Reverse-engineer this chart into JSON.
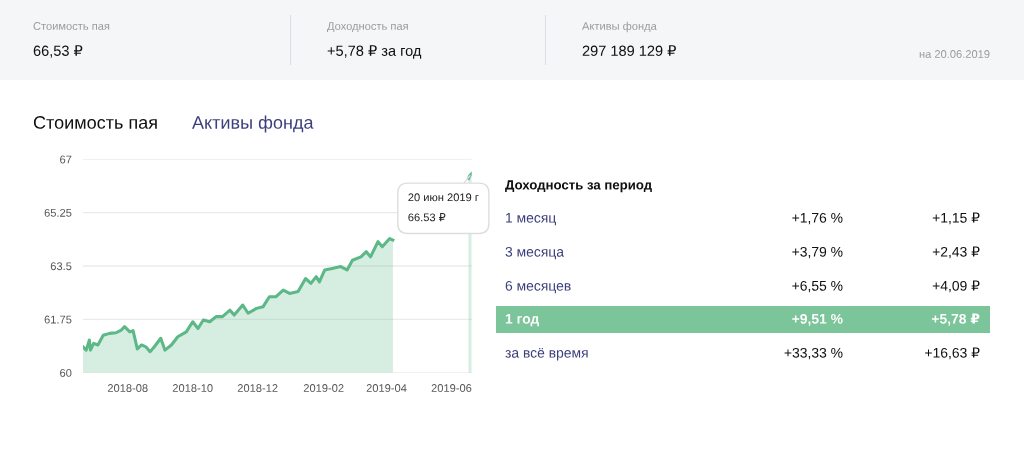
{
  "chart_data": {
    "type": "area",
    "title": "Стоимость пая",
    "x": [
      "2018-06-20",
      "2018-06-23",
      "2018-06-26",
      "2018-06-27",
      "2018-06-30",
      "2018-07-04",
      "2018-07-09",
      "2018-07-15",
      "2018-07-21",
      "2018-07-26",
      "2018-07-29",
      "2018-08-03",
      "2018-08-06",
      "2018-08-10",
      "2018-08-14",
      "2018-08-18",
      "2018-08-22",
      "2018-08-26",
      "2018-09-01",
      "2018-09-05",
      "2018-09-11",
      "2018-09-17",
      "2018-09-25",
      "2018-10-01",
      "2018-10-06",
      "2018-10-11",
      "2018-10-17",
      "2018-10-23",
      "2018-10-29",
      "2018-11-05",
      "2018-11-09",
      "2018-11-17",
      "2018-11-22",
      "2018-11-30",
      "2018-12-06",
      "2018-12-12",
      "2018-12-18",
      "2018-12-25",
      "2018-12-31",
      "2019-01-08",
      "2019-01-15",
      "2019-01-20",
      "2019-01-25",
      "2019-01-28",
      "2019-02-02",
      "2019-02-09",
      "2019-02-17",
      "2019-02-23",
      "2019-02-28",
      "2019-03-08",
      "2019-03-13",
      "2019-03-17",
      "2019-03-24",
      "2019-03-28",
      "2019-04-04",
      "2019-04-07",
      "2019-04-16",
      "2019-06-11",
      "2019-06-17",
      "2019-06-18",
      "2019-06-20"
    ],
    "series": [
      {
        "color": "#5cb887",
        "values": [
          60.85,
          60.74,
          61.07,
          60.74,
          60.96,
          60.91,
          61.23,
          61.29,
          61.31,
          61.4,
          61.51,
          61.34,
          61.38,
          60.78,
          60.91,
          60.85,
          60.69,
          60.85,
          61.13,
          60.74,
          60.91,
          61.18,
          61.34,
          61.67,
          61.45,
          61.73,
          61.67,
          61.84,
          61.84,
          62.05,
          61.89,
          62.22,
          61.95,
          62.11,
          62.16,
          62.49,
          62.49,
          62.71,
          62.6,
          62.66,
          63.09,
          62.93,
          63.15,
          62.98,
          63.37,
          63.42,
          63.48,
          63.37,
          63.69,
          63.8,
          63.97,
          63.8,
          64.3,
          64.13,
          64.4,
          64.35,
          null,
          null,
          66.37,
          66.45,
          66.53
        ]
      }
    ],
    "xlim": [
      "2018-06-20",
      "2019-06-20"
    ],
    "xticks": [
      {
        "value": "2018-08-01",
        "label": "2018-08"
      },
      {
        "value": "2018-10-01",
        "label": "2018-10"
      },
      {
        "value": "2018-12-01",
        "label": "2018-12"
      },
      {
        "value": "2019-02-01",
        "label": "2019-02"
      },
      {
        "value": "2019-04-01",
        "label": "2019-04"
      },
      {
        "value": "2019-06-01",
        "label": "2019-06"
      }
    ],
    "ylim": [
      60,
      67
    ],
    "yticks": [
      60,
      61.75,
      63.5,
      65.25,
      67
    ],
    "grid": "y",
    "annotations": [
      {
        "text": "20 июн 2019 г\n66.53 ₽",
        "x": "2019-06-20",
        "y": 66.53
      },
      "Стоимость пая",
      "66,53 ₽",
      "Доходность пая",
      "+5,78 ₽ за год",
      "Активы фонда",
      "297 189 129 ₽",
      "на 20.06.2019",
      "Активы фонда",
      "Доходность за период",
      "1 месяц",
      "+1,76 %",
      "+1,15 ₽",
      "3 месяца",
      "+3,79 %",
      "+2,43 ₽",
      "6 месяцев",
      "+6,55 %",
      "+4,09 ₽",
      "1 год",
      "+9,51 %",
      "+5,78 ₽",
      "за всё время",
      "+33,33 %",
      "+16,63 ₽"
    ]
  }
}
